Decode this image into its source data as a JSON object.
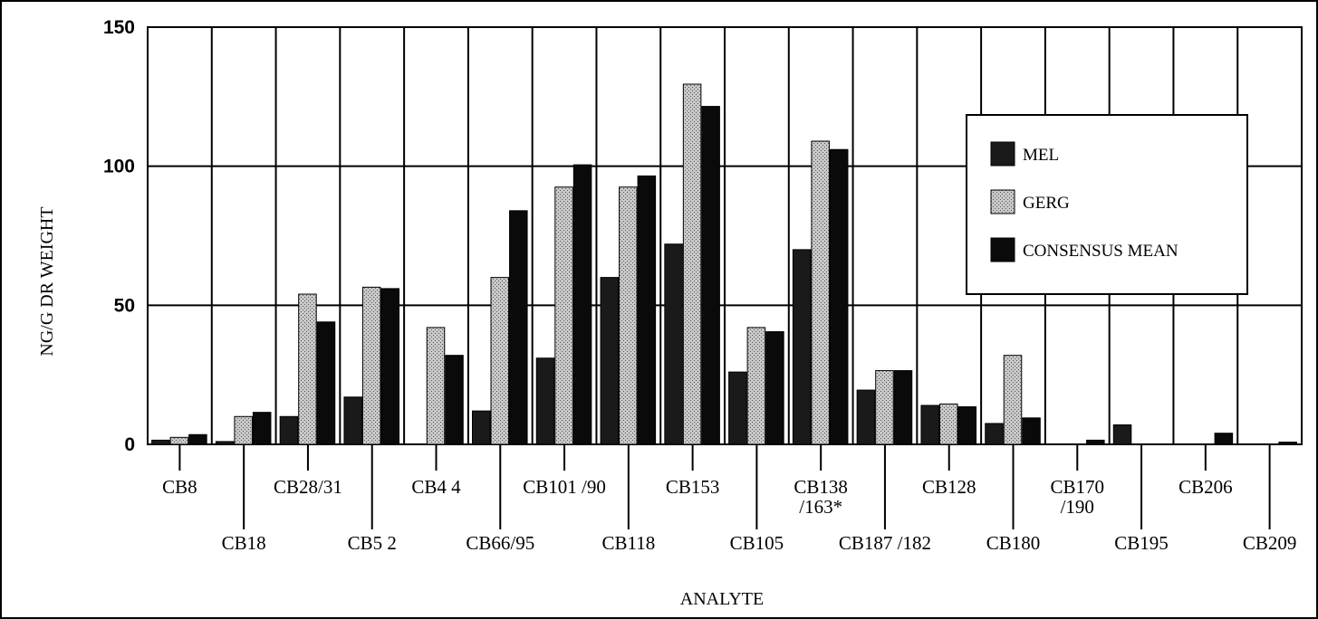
{
  "chart_data": {
    "type": "bar",
    "xlabel": "ANALYTE",
    "ylabel": "NG/G DR WEIGHT",
    "ylim": [
      0,
      150
    ],
    "yticks": [
      "0",
      "50",
      "100",
      "150"
    ],
    "grid": true,
    "legend_position": "top-right",
    "categories": [
      "CB8",
      "CB18",
      "CB28/31",
      "CB5 2",
      "CB4 4",
      "CB66/95",
      "CB101 /90",
      "CB118",
      "CB153",
      "CB105",
      "CB138 /163*",
      "CB187 /182",
      "CB128",
      "CB180",
      "CB170 /190",
      "CB195",
      "CB206",
      "CB209"
    ],
    "category_labels": [
      [
        "CB8"
      ],
      [
        "CB18"
      ],
      [
        "CB28/31"
      ],
      [
        "CB5 2"
      ],
      [
        "CB4 4"
      ],
      [
        "CB66/95"
      ],
      [
        "CB101 /90"
      ],
      [
        "CB118"
      ],
      [
        "CB153"
      ],
      [
        "CB105"
      ],
      [
        "CB138",
        "/163*"
      ],
      [
        "CB187 /182"
      ],
      [
        "CB128"
      ],
      [
        "CB180"
      ],
      [
        "CB170",
        "/190"
      ],
      [
        "CB195"
      ],
      [
        "CB206"
      ],
      [
        "CB209"
      ]
    ],
    "label_tier": [
      0,
      1,
      0,
      1,
      0,
      1,
      0,
      1,
      0,
      1,
      0,
      1,
      0,
      1,
      0,
      1,
      0,
      1
    ],
    "series": [
      {
        "name": "MEL",
        "color": "#1a1a1a",
        "pattern": "solid",
        "values": [
          1.5,
          1,
          10,
          17,
          0,
          12,
          31,
          60,
          72,
          26,
          70,
          19.5,
          14,
          7.5,
          0,
          7,
          0,
          0
        ]
      },
      {
        "name": "GERG",
        "color": "#b8b8b8",
        "pattern": "stipple",
        "values": [
          2.5,
          10,
          54,
          56.5,
          42,
          60,
          92.5,
          92.5,
          129.5,
          42,
          109,
          26.5,
          14.5,
          32,
          0,
          0,
          0,
          0
        ]
      },
      {
        "name": "CONSENSUS MEAN",
        "color": "#0a0a0a",
        "pattern": "solid",
        "values": [
          3.5,
          11.5,
          44,
          56,
          32,
          84,
          100.5,
          96.5,
          121.5,
          40.5,
          106,
          26.5,
          13.5,
          9.5,
          1.5,
          0,
          4,
          0.8
        ]
      }
    ]
  }
}
